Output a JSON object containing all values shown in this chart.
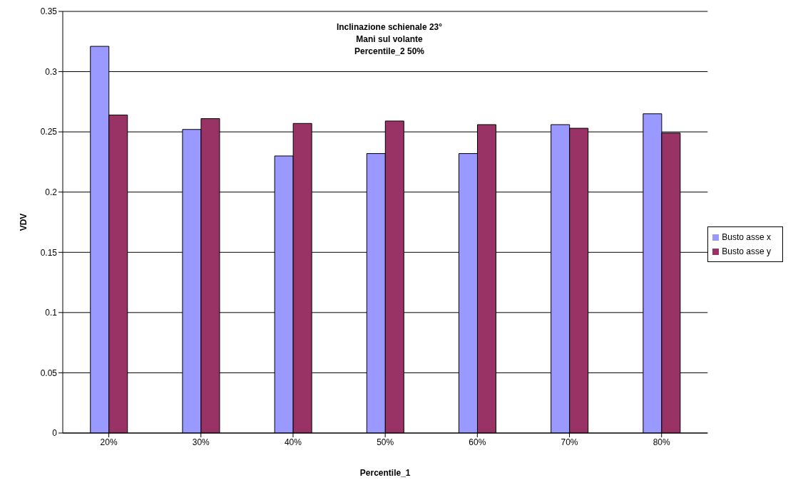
{
  "chart_data": {
    "type": "bar",
    "title": "Inclinazione schienale 23°\nMani sul volante\nPercentile_2 50%",
    "xlabel": "Percentile_1",
    "ylabel": "VDV",
    "categories": [
      "20%",
      "30%",
      "40%",
      "50%",
      "60%",
      "70%",
      "80%"
    ],
    "series": [
      {
        "name": "Busto asse x",
        "color": "#9999ff",
        "values": [
          0.321,
          0.252,
          0.23,
          0.232,
          0.232,
          0.256,
          0.265
        ]
      },
      {
        "name": "Busto asse y",
        "color": "#993366",
        "values": [
          0.264,
          0.261,
          0.257,
          0.259,
          0.256,
          0.253,
          0.249
        ]
      }
    ],
    "ylim": [
      0,
      0.35
    ],
    "yticks": [
      0,
      0.05,
      0.1,
      0.15,
      0.2,
      0.25,
      0.3,
      0.35
    ],
    "grid": "y",
    "legend": "right"
  }
}
